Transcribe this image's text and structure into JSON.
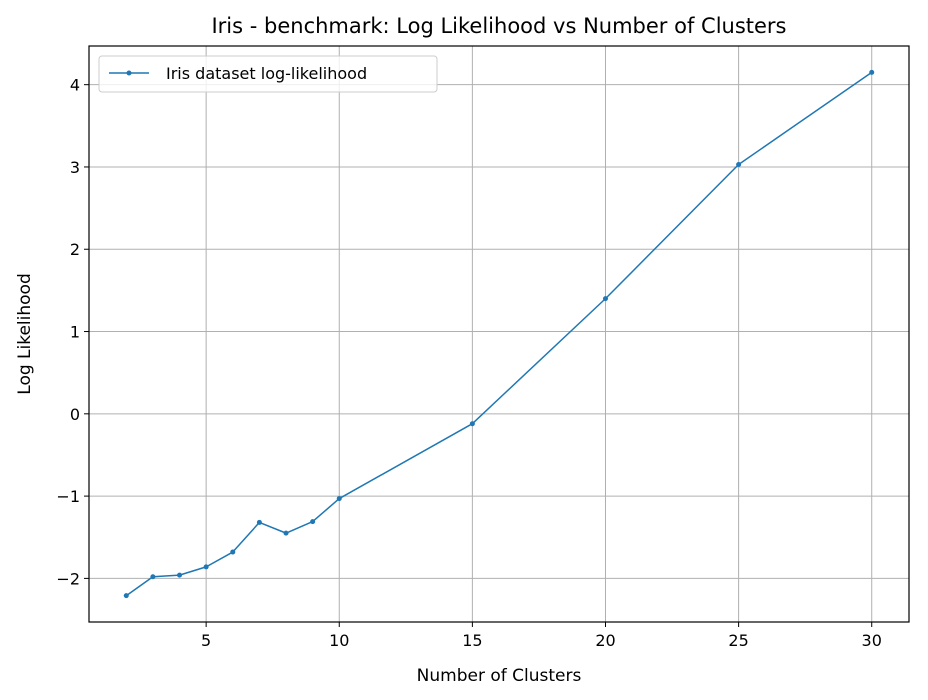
{
  "chart_data": {
    "type": "line",
    "title": "Iris - benchmark: Log Likelihood vs Number of Clusters",
    "xlabel": "Number of Clusters",
    "ylabel": "Log Likelihood",
    "xlim": [
      0.6,
      31.4
    ],
    "ylim": [
      -2.53,
      4.47
    ],
    "xticks": [
      5,
      10,
      15,
      20,
      25,
      30
    ],
    "yticks": [
      -2,
      -1,
      0,
      1,
      2,
      3,
      4
    ],
    "xtick_labels": [
      "5",
      "10",
      "15",
      "20",
      "25",
      "30"
    ],
    "ytick_labels": [
      "−2",
      "−1",
      "0",
      "1",
      "2",
      "3",
      "4"
    ],
    "grid": true,
    "legend_position": "top-left",
    "series": [
      {
        "name": "Iris dataset log-likelihood",
        "color": "#1f77b4",
        "x": [
          2,
          3,
          4,
          5,
          6,
          7,
          8,
          9,
          10,
          15,
          20,
          25,
          30
        ],
        "y": [
          -2.21,
          -1.98,
          -1.96,
          -1.86,
          -1.68,
          -1.32,
          -1.45,
          -1.31,
          -1.03,
          -0.12,
          1.4,
          3.03,
          4.15
        ]
      }
    ]
  }
}
